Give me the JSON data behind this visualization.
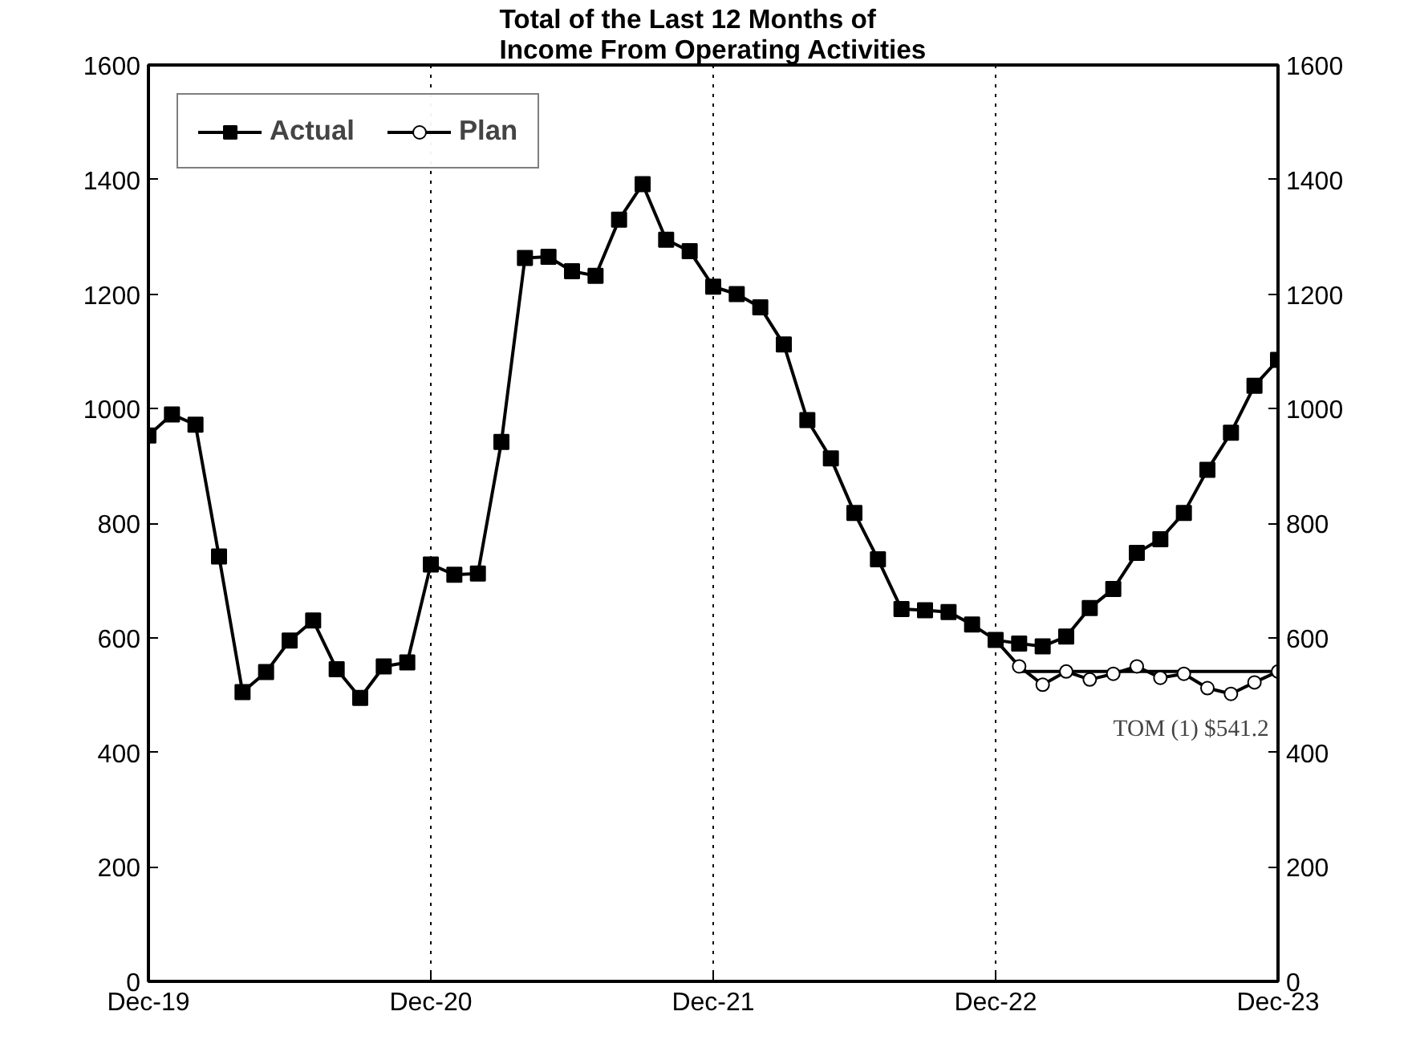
{
  "chart_data": {
    "type": "line",
    "title": "Total of the Last 12 Months of\nIncome From Operating Activities",
    "x": [
      "2019-12",
      "2020-01",
      "2020-02",
      "2020-03",
      "2020-04",
      "2020-05",
      "2020-06",
      "2020-07",
      "2020-08",
      "2020-09",
      "2020-10",
      "2020-11",
      "2020-12",
      "2021-01",
      "2021-02",
      "2021-03",
      "2021-04",
      "2021-05",
      "2021-06",
      "2021-07",
      "2021-08",
      "2021-09",
      "2021-10",
      "2021-11",
      "2021-12",
      "2022-01",
      "2022-02",
      "2022-03",
      "2022-04",
      "2022-05",
      "2022-06",
      "2022-07",
      "2022-08",
      "2022-09",
      "2022-10",
      "2022-11",
      "2022-12",
      "2023-01",
      "2023-02",
      "2023-03",
      "2023-04",
      "2023-05",
      "2023-06",
      "2023-07",
      "2023-08",
      "2023-09",
      "2023-10",
      "2023-11",
      "2023-12"
    ],
    "series": [
      {
        "name": "Actual",
        "color": "#000000",
        "marker": "square",
        "values": [
          953,
          990,
          972,
          742,
          505,
          540,
          595,
          630,
          545,
          495,
          550,
          557,
          728,
          710,
          712,
          942,
          1263,
          1265,
          1240,
          1232,
          1330,
          1392,
          1295,
          1275,
          1213,
          1200,
          1177,
          1112,
          980,
          913,
          818,
          737,
          650,
          648,
          645,
          623,
          596,
          590,
          585,
          602,
          652,
          685,
          748,
          772,
          818,
          893,
          958,
          1040,
          1085
        ]
      },
      {
        "name": "Plan",
        "color": "#000000",
        "marker": "circle",
        "x": [
          "2022-12",
          "2023-01",
          "2023-02",
          "2023-03",
          "2023-04",
          "2023-05",
          "2023-06",
          "2023-07",
          "2023-08",
          "2023-09",
          "2023-10",
          "2023-11",
          "2023-12"
        ],
        "values": [
          596,
          550,
          518,
          541,
          527,
          537,
          550,
          530,
          537,
          512,
          502,
          522,
          541
        ]
      },
      {
        "color": "#000000",
        "marker": "none",
        "x": [
          "2023-01",
          "2023-12"
        ],
        "values": [
          541.2,
          541.2
        ]
      }
    ],
    "annotations": [
      {
        "text": "TOM (1)  $541.2",
        "x": "2023-12",
        "y": 541.2
      }
    ],
    "ref_lines": [
      {
        "axis": "x",
        "value": "2020-12",
        "color": "#000000",
        "line_style": "dotted"
      },
      {
        "axis": "x",
        "value": "2021-12",
        "color": "#000000",
        "line_style": "dotted"
      },
      {
        "axis": "x",
        "value": "2022-12",
        "color": "#000000",
        "line_style": "dotted"
      }
    ],
    "xlim": [
      "2019-12",
      "2023-12"
    ],
    "xticks": [
      {
        "value": "2019-12",
        "label": "Dec-19"
      },
      {
        "value": "2020-12",
        "label": "Dec-20"
      },
      {
        "value": "2021-12",
        "label": "Dec-21"
      },
      {
        "value": "2022-12",
        "label": "Dec-22"
      },
      {
        "value": "2023-12",
        "label": "Dec-23"
      }
    ],
    "ylim": [
      0,
      1600
    ],
    "yticks": [
      0,
      200,
      400,
      600,
      800,
      1000,
      1200,
      1400,
      1600
    ],
    "y2lim": [
      0,
      1600
    ],
    "y2ticks": [
      0,
      200,
      400,
      600,
      800,
      1000,
      1200,
      1400,
      1600
    ],
    "grid": false,
    "legend": "top left",
    "line_style": "solid"
  }
}
